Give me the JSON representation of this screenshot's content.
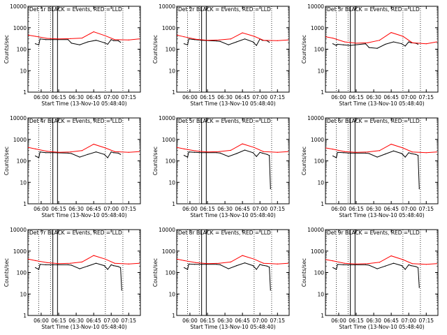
{
  "figure": {
    "xlabel": "Start Time (13-Nov-10 05:48:40)",
    "ylabel": "Counts/sec",
    "colors": {
      "events": "#000000",
      "lld": "#ff0000",
      "background": "#ffffff"
    }
  },
  "chart_data": [
    {
      "type": "line",
      "title": "Det 1r BLACK = Events, RED = LLD",
      "xlabel": "Start Time (13-Nov-10 05:48:40)",
      "ylabel": "Counts/sec",
      "y_scale": "log",
      "ylim": [
        1,
        10000
      ],
      "xlim": [
        "05:48:40",
        "07:25"
      ],
      "x_tick_labels": [
        "06:00",
        "06:15",
        "06:30",
        "06:45",
        "07:00",
        "07:15"
      ],
      "y_tick_labels": [
        "1",
        "10",
        "100",
        "1000",
        "10000"
      ],
      "vlines_dotted": [
        "05:58",
        "06:08",
        "06:55",
        "07:10"
      ],
      "vlines_solid": [
        "06:10",
        "06:14"
      ],
      "series": [
        {
          "name": "Events",
          "color": "#000000",
          "x": [
            "05:55",
            "05:58",
            "05:59",
            "06:04",
            "06:10",
            "06:23",
            "06:26",
            "06:33",
            "06:40",
            "06:47",
            "06:54",
            "06:57",
            "07:00",
            "07:02",
            "07:06",
            "07:08"
          ],
          "values": [
            180,
            160,
            300,
            280,
            280,
            280,
            190,
            160,
            220,
            260,
            200,
            170,
            280,
            250,
            250,
            210
          ]
        },
        {
          "name": "LLD",
          "color": "#ff0000",
          "x": [
            "05:49",
            "05:55",
            "06:05",
            "06:15",
            "06:25",
            "06:35",
            "06:45",
            "06:55",
            "07:03",
            "07:15",
            "07:24"
          ],
          "values": [
            450,
            400,
            320,
            300,
            310,
            330,
            650,
            420,
            280,
            270,
            300
          ]
        }
      ]
    },
    {
      "type": "line",
      "title": "Det 2r BLACK = Events, RED = LLD",
      "xlabel": "Start Time (13-Nov-10 05:48:40)",
      "ylabel": "Counts/sec",
      "y_scale": "log",
      "ylim": [
        1,
        10000
      ],
      "xlim": [
        "05:48:40",
        "07:25"
      ],
      "x_tick_labels": [
        "06:00",
        "06:15",
        "06:30",
        "06:45",
        "07:00",
        "07:15"
      ],
      "y_tick_labels": [
        "1",
        "10",
        "100",
        "1000",
        "10000"
      ],
      "vlines_dotted": [
        "05:58",
        "06:08",
        "06:55",
        "07:10"
      ],
      "vlines_solid": [
        "06:10",
        "06:14"
      ],
      "series": [
        {
          "name": "Events",
          "color": "#000000",
          "x": [
            "05:55",
            "05:58",
            "05:59",
            "06:04",
            "06:10",
            "06:23",
            "06:26",
            "06:33",
            "06:40",
            "06:47",
            "06:54",
            "06:57",
            "07:00",
            "07:02",
            "07:06",
            "07:08"
          ],
          "values": [
            180,
            160,
            300,
            280,
            260,
            240,
            230,
            160,
            220,
            300,
            220,
            150,
            300,
            260,
            250,
            210
          ]
        },
        {
          "name": "LLD",
          "color": "#ff0000",
          "x": [
            "05:49",
            "05:55",
            "06:05",
            "06:15",
            "06:25",
            "06:35",
            "06:45",
            "06:55",
            "07:03",
            "07:15",
            "07:24"
          ],
          "values": [
            450,
            380,
            290,
            260,
            270,
            300,
            580,
            400,
            260,
            250,
            270
          ]
        }
      ]
    },
    {
      "type": "line",
      "title": "Det 3r BLACK = Events, RED = LLD",
      "xlabel": "Start Time (13-Nov-10 05:48:40)",
      "ylabel": "Counts/sec",
      "y_scale": "log",
      "ylim": [
        1,
        10000
      ],
      "xlim": [
        "05:48:40",
        "07:25"
      ],
      "x_tick_labels": [
        "06:00",
        "06:15",
        "06:30",
        "06:45",
        "07:00",
        "07:15"
      ],
      "y_tick_labels": [
        "1",
        "10",
        "100",
        "1000",
        "10000"
      ],
      "vlines_dotted": [
        "05:58",
        "06:08",
        "06:55",
        "07:10"
      ],
      "vlines_solid": [
        "06:10",
        "06:14"
      ],
      "series": [
        {
          "name": "Events",
          "color": "#000000",
          "x": [
            "05:55",
            "05:58",
            "05:59",
            "06:04",
            "06:10",
            "06:23",
            "06:26",
            "06:33",
            "06:40",
            "06:47",
            "06:54",
            "06:57",
            "07:00",
            "07:02",
            "07:06",
            "07:08"
          ],
          "values": [
            180,
            150,
            170,
            160,
            150,
            180,
            120,
            110,
            170,
            220,
            180,
            140,
            220,
            200,
            190,
            170
          ]
        },
        {
          "name": "LLD",
          "color": "#ff0000",
          "x": [
            "05:49",
            "05:55",
            "06:05",
            "06:15",
            "06:25",
            "06:35",
            "06:45",
            "06:55",
            "07:03",
            "07:15",
            "07:24"
          ],
          "values": [
            380,
            330,
            220,
            190,
            200,
            260,
            600,
            400,
            200,
            180,
            220
          ]
        }
      ]
    },
    {
      "type": "line",
      "title": "Det 4r BLACK = Events, RED = LLD",
      "xlabel": "Start Time (13-Nov-10 05:48:40)",
      "ylabel": "Counts/sec",
      "y_scale": "log",
      "ylim": [
        1,
        10000
      ],
      "xlim": [
        "05:48:40",
        "07:25"
      ],
      "x_tick_labels": [
        "06:00",
        "06:15",
        "06:30",
        "06:45",
        "07:00",
        "07:15"
      ],
      "y_tick_labels": [
        "1",
        "10",
        "100",
        "1000",
        "10000"
      ],
      "vlines_dotted": [
        "05:58",
        "06:08",
        "06:55",
        "07:10"
      ],
      "vlines_solid": [
        "06:10",
        "06:14"
      ],
      "series": [
        {
          "name": "Events",
          "color": "#000000",
          "x": [
            "05:55",
            "05:58",
            "05:59",
            "06:04",
            "06:10",
            "06:23",
            "06:26",
            "06:33",
            "06:40",
            "06:47",
            "06:54",
            "06:57",
            "07:00",
            "07:02",
            "07:06",
            "07:08"
          ],
          "values": [
            170,
            140,
            260,
            240,
            240,
            230,
            220,
            150,
            200,
            260,
            200,
            140,
            260,
            240,
            230,
            200
          ]
        },
        {
          "name": "LLD",
          "color": "#ff0000",
          "x": [
            "05:49",
            "05:55",
            "06:05",
            "06:15",
            "06:25",
            "06:35",
            "06:45",
            "06:55",
            "07:03",
            "07:15",
            "07:24"
          ],
          "values": [
            420,
            360,
            280,
            250,
            260,
            300,
            600,
            400,
            270,
            250,
            270
          ]
        }
      ]
    },
    {
      "type": "line",
      "title": "Det 5r BLACK = Events, RED = LLD",
      "xlabel": "Start Time (13-Nov-10 05:48:40)",
      "ylabel": "Counts/sec",
      "y_scale": "log",
      "ylim": [
        1,
        10000
      ],
      "xlim": [
        "05:48:40",
        "07:25"
      ],
      "x_tick_labels": [
        "06:00",
        "06:15",
        "06:30",
        "06:45",
        "07:00",
        "07:15"
      ],
      "y_tick_labels": [
        "1",
        "10",
        "100",
        "1000",
        "10000"
      ],
      "vlines_dotted": [
        "05:58",
        "06:08",
        "06:55",
        "07:10"
      ],
      "vlines_solid": [
        "06:10",
        "06:14"
      ],
      "series": [
        {
          "name": "Events",
          "color": "#000000",
          "x": [
            "05:55",
            "05:58",
            "05:59",
            "06:04",
            "06:10",
            "06:23",
            "06:26",
            "06:33",
            "06:40",
            "06:47",
            "06:54",
            "06:57",
            "07:00",
            "07:02",
            "07:06",
            "07:08",
            "07:09"
          ],
          "values": [
            180,
            150,
            260,
            250,
            240,
            240,
            230,
            160,
            220,
            320,
            240,
            160,
            250,
            230,
            200,
            180,
            5
          ]
        },
        {
          "name": "LLD",
          "color": "#ff0000",
          "x": [
            "05:49",
            "05:55",
            "06:05",
            "06:15",
            "06:25",
            "06:35",
            "06:45",
            "06:55",
            "07:03",
            "07:15",
            "07:24"
          ],
          "values": [
            420,
            360,
            290,
            260,
            270,
            310,
            620,
            420,
            270,
            250,
            270
          ]
        }
      ]
    },
    {
      "type": "line",
      "title": "Det 6r BLACK = Events, RED = LLD",
      "xlabel": "Start Time (13-Nov-10 05:48:40)",
      "ylabel": "Counts/sec",
      "y_scale": "log",
      "ylim": [
        1,
        10000
      ],
      "xlim": [
        "05:48:40",
        "07:25"
      ],
      "x_tick_labels": [
        "06:00",
        "06:15",
        "06:30",
        "06:45",
        "07:00",
        "07:15"
      ],
      "y_tick_labels": [
        "1",
        "10",
        "100",
        "1000",
        "10000"
      ],
      "vlines_dotted": [
        "05:58",
        "06:08",
        "06:55",
        "07:10"
      ],
      "vlines_solid": [
        "06:10",
        "06:14"
      ],
      "series": [
        {
          "name": "Events",
          "color": "#000000",
          "x": [
            "05:55",
            "05:58",
            "05:59",
            "06:04",
            "06:10",
            "06:23",
            "06:26",
            "06:33",
            "06:40",
            "06:47",
            "06:54",
            "06:57",
            "07:00",
            "07:02",
            "07:06",
            "07:08",
            "07:09"
          ],
          "values": [
            170,
            140,
            250,
            240,
            230,
            230,
            220,
            150,
            210,
            290,
            220,
            150,
            240,
            220,
            200,
            180,
            5
          ]
        },
        {
          "name": "LLD",
          "color": "#ff0000",
          "x": [
            "05:49",
            "05:55",
            "06:05",
            "06:15",
            "06:25",
            "06:35",
            "06:45",
            "06:55",
            "07:03",
            "07:15",
            "07:24"
          ],
          "values": [
            400,
            350,
            270,
            250,
            260,
            300,
            600,
            400,
            260,
            240,
            260
          ]
        }
      ]
    },
    {
      "type": "line",
      "title": "Det 7r BLACK = Events, RED = LLD",
      "xlabel": "Start Time (13-Nov-10 05:48:40)",
      "ylabel": "Counts/sec",
      "y_scale": "log",
      "ylim": [
        1,
        10000
      ],
      "xlim": [
        "05:48:40",
        "07:25"
      ],
      "x_tick_labels": [
        "06:00",
        "06:15",
        "06:30",
        "06:45",
        "07:00",
        "07:15"
      ],
      "y_tick_labels": [
        "1",
        "10",
        "100",
        "1000",
        "10000"
      ],
      "vlines_dotted": [
        "05:58",
        "06:08",
        "06:55",
        "07:10"
      ],
      "vlines_solid": [
        "06:10",
        "06:14"
      ],
      "series": [
        {
          "name": "Events",
          "color": "#000000",
          "x": [
            "05:55",
            "05:58",
            "05:59",
            "06:04",
            "06:10",
            "06:23",
            "06:26",
            "06:33",
            "06:40",
            "06:47",
            "06:54",
            "06:57",
            "07:00",
            "07:02",
            "07:06",
            "07:08",
            "07:09"
          ],
          "values": [
            170,
            140,
            240,
            230,
            230,
            230,
            220,
            150,
            200,
            270,
            210,
            140,
            230,
            210,
            190,
            170,
            15
          ]
        },
        {
          "name": "LLD",
          "color": "#ff0000",
          "x": [
            "05:49",
            "05:55",
            "06:05",
            "06:15",
            "06:25",
            "06:35",
            "06:45",
            "06:55",
            "07:03",
            "07:15",
            "07:24"
          ],
          "values": [
            420,
            360,
            290,
            260,
            270,
            310,
            620,
            420,
            270,
            250,
            270
          ]
        }
      ]
    },
    {
      "type": "line",
      "title": "Det 8r BLACK = Events, RED = LLD",
      "xlabel": "Start Time (13-Nov-10 05:48:40)",
      "ylabel": "Counts/sec",
      "y_scale": "log",
      "ylim": [
        1,
        10000
      ],
      "xlim": [
        "05:48:40",
        "07:25"
      ],
      "x_tick_labels": [
        "06:00",
        "06:15",
        "06:30",
        "06:45",
        "07:00",
        "07:15"
      ],
      "y_tick_labels": [
        "1",
        "10",
        "100",
        "1000",
        "10000"
      ],
      "vlines_dotted": [
        "05:58",
        "06:08",
        "06:55",
        "07:10"
      ],
      "vlines_solid": [
        "06:10",
        "06:14"
      ],
      "series": [
        {
          "name": "Events",
          "color": "#000000",
          "x": [
            "05:55",
            "05:58",
            "05:59",
            "06:04",
            "06:10",
            "06:23",
            "06:26",
            "06:33",
            "06:40",
            "06:47",
            "06:54",
            "06:57",
            "07:00",
            "07:02",
            "07:06",
            "07:08",
            "07:09"
          ],
          "values": [
            170,
            140,
            250,
            240,
            240,
            240,
            230,
            150,
            210,
            280,
            210,
            140,
            240,
            220,
            200,
            180,
            15
          ]
        },
        {
          "name": "LLD",
          "color": "#ff0000",
          "x": [
            "05:49",
            "05:55",
            "06:05",
            "06:15",
            "06:25",
            "06:35",
            "06:45",
            "06:55",
            "07:03",
            "07:15",
            "07:24"
          ],
          "values": [
            420,
            360,
            290,
            260,
            270,
            310,
            620,
            420,
            270,
            250,
            270
          ]
        }
      ]
    },
    {
      "type": "line",
      "title": "Det 9r BLACK = Events, RED = LLD",
      "xlabel": "Start Time (13-Nov-10 05:48:40)",
      "ylabel": "Counts/sec",
      "y_scale": "log",
      "ylim": [
        1,
        10000
      ],
      "xlim": [
        "05:48:40",
        "07:25"
      ],
      "x_tick_labels": [
        "06:00",
        "06:15",
        "06:30",
        "06:45",
        "07:00",
        "07:15"
      ],
      "y_tick_labels": [
        "1",
        "10",
        "100",
        "1000",
        "10000"
      ],
      "vlines_dotted": [
        "05:58",
        "06:08",
        "06:55",
        "07:10"
      ],
      "vlines_solid": [
        "06:10",
        "06:14"
      ],
      "series": [
        {
          "name": "Events",
          "color": "#000000",
          "x": [
            "05:55",
            "05:58",
            "05:59",
            "06:04",
            "06:10",
            "06:23",
            "06:26",
            "06:33",
            "06:40",
            "06:47",
            "06:54",
            "06:57",
            "07:00",
            "07:02",
            "07:06",
            "07:08",
            "07:09"
          ],
          "values": [
            170,
            140,
            240,
            230,
            230,
            230,
            220,
            150,
            200,
            270,
            210,
            140,
            230,
            210,
            190,
            170,
            20
          ]
        },
        {
          "name": "LLD",
          "color": "#ff0000",
          "x": [
            "05:49",
            "05:55",
            "06:05",
            "06:15",
            "06:25",
            "06:35",
            "06:45",
            "06:55",
            "07:03",
            "07:15",
            "07:24"
          ],
          "values": [
            400,
            350,
            270,
            250,
            260,
            300,
            600,
            400,
            260,
            240,
            260
          ]
        }
      ]
    }
  ]
}
